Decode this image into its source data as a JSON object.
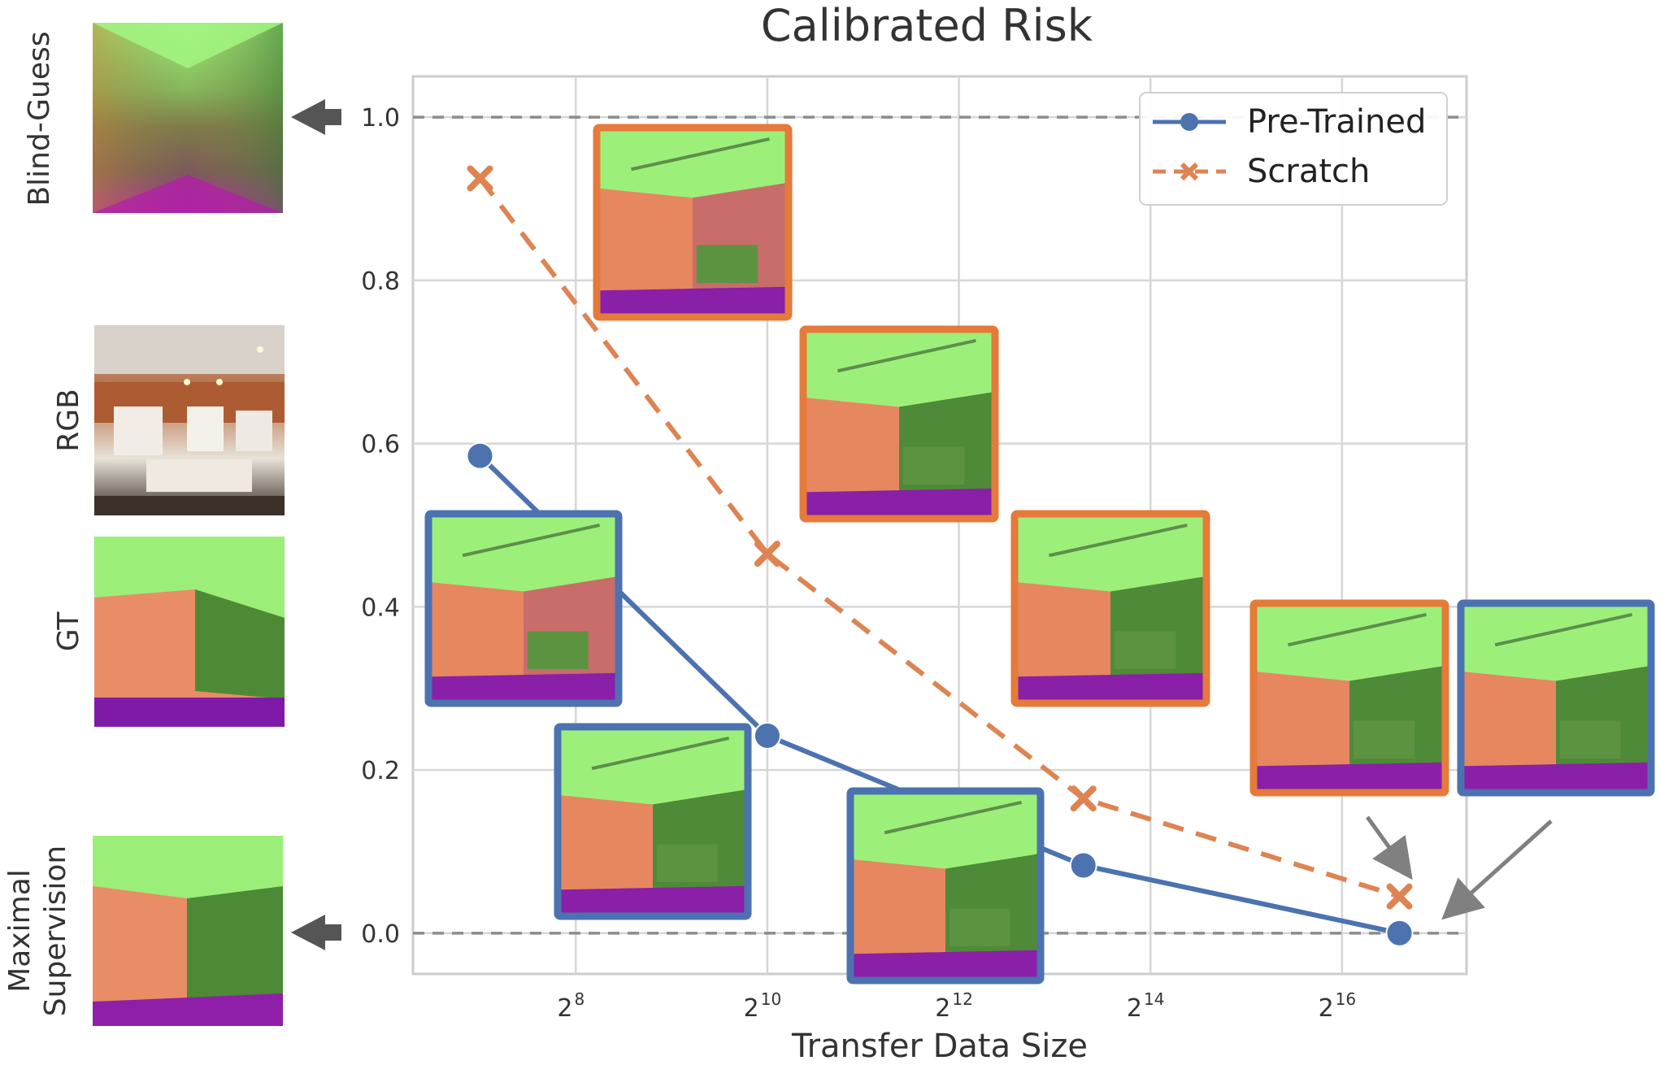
{
  "chart_data": {
    "type": "line",
    "title": "Calibrated Risk",
    "xlabel": "Transfer Data Size",
    "ylabel": "",
    "x_scale": "log2",
    "xlim": [
      6.3,
      17.3
    ],
    "ylim": [
      -0.05,
      1.05
    ],
    "grid": true,
    "x_ticks": [
      {
        "exp": 8,
        "base": "2",
        "sup": "8"
      },
      {
        "exp": 10,
        "base": "2",
        "sup": "10"
      },
      {
        "exp": 12,
        "base": "2",
        "sup": "12"
      },
      {
        "exp": 14,
        "base": "2",
        "sup": "14"
      },
      {
        "exp": 16,
        "base": "2",
        "sup": "16"
      }
    ],
    "y_ticks": [
      {
        "value": 0.0,
        "label": "0.0"
      },
      {
        "value": 0.2,
        "label": "0.2"
      },
      {
        "value": 0.4,
        "label": "0.4"
      },
      {
        "value": 0.6,
        "label": "0.6"
      },
      {
        "value": 0.8,
        "label": "0.8"
      },
      {
        "value": 1.0,
        "label": "1.0"
      }
    ],
    "reference_lines": [
      {
        "name": "blind-guess",
        "value": 1.0
      },
      {
        "name": "maximal-supervision",
        "value": 0.0
      }
    ],
    "series": [
      {
        "name": "Pre-Trained",
        "color": "#4c72b0",
        "linestyle": "solid",
        "marker": "circle",
        "x_exp": [
          7.0,
          10.0,
          13.3,
          16.6
        ],
        "values": [
          0.585,
          0.242,
          0.083,
          0.0
        ]
      },
      {
        "name": "Scratch",
        "color": "#dd8452",
        "linestyle": "dashed",
        "marker": "x",
        "x_exp": [
          7.0,
          10.0,
          13.3,
          16.6
        ],
        "values": [
          0.925,
          0.465,
          0.165,
          0.045
        ]
      }
    ],
    "legend": {
      "position": "top-right",
      "entries": [
        "Pre-Trained",
        "Scratch"
      ]
    }
  },
  "row_labels": {
    "blind_guess": "Blind-Guess",
    "rgb": "RGB",
    "gt": "GT",
    "maximal_line1": "Maximal",
    "maximal_line2": "Supervision"
  },
  "colors": {
    "pretrained": "#4c72b0",
    "scratch": "#dd8452",
    "scratch_border": "#e57a3a",
    "grid": "#d6d6d6",
    "reference": "#8c8c8c",
    "text": "#333333",
    "arrow": "#707070"
  }
}
